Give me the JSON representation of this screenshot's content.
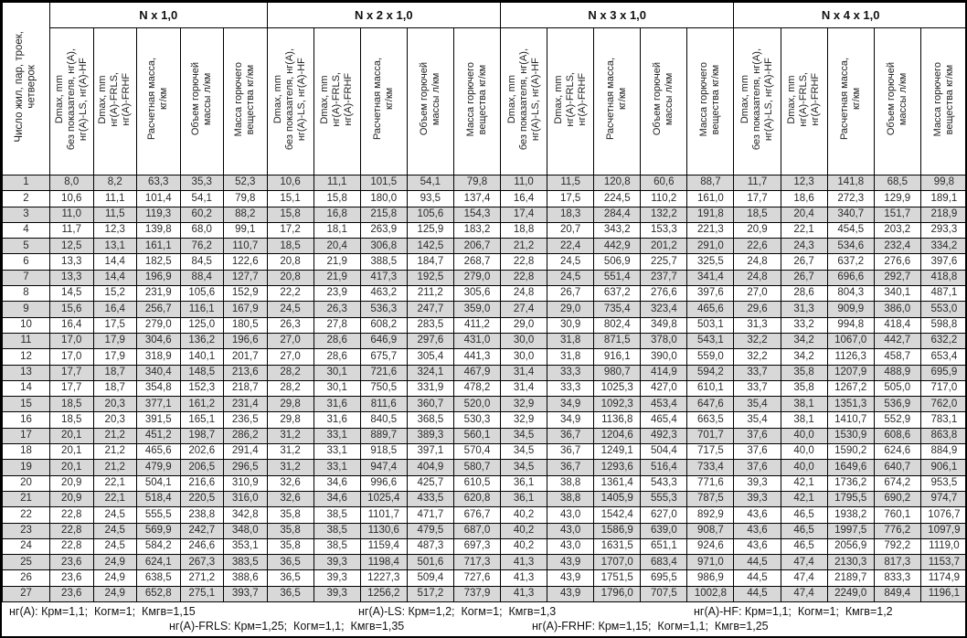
{
  "table": {
    "row_header_label": "Число жил, пар, троек,\nчетверок",
    "groups": [
      {
        "label": "N x 1,0"
      },
      {
        "label": "N x 2 x 1,0"
      },
      {
        "label": "N x 3 x 1,0"
      },
      {
        "label": "N x 4 x 1,0"
      }
    ],
    "column_headers": [
      "Dmax, mm\nбез показателя, нг(А),\nнг(А)-LS, нг(А)-HF",
      "Dmax, mm\nнг(А)-FRLS,\nнг(А)-FRHF",
      "Расчетная масса,\nкг/км",
      "Объем горючей\nмассы л/км",
      "Масса горючего\nвещества кг/км"
    ],
    "rows": [
      [
        "1",
        "8,0",
        "8,2",
        "63,3",
        "35,3",
        "52,3",
        "10,6",
        "11,1",
        "101,5",
        "54,1",
        "79,8",
        "11,0",
        "11,5",
        "120,8",
        "60,6",
        "88,7",
        "11,7",
        "12,3",
        "141,8",
        "68,5",
        "99,8"
      ],
      [
        "2",
        "10,6",
        "11,1",
        "101,4",
        "54,1",
        "79,8",
        "15,1",
        "15,8",
        "180,0",
        "93,5",
        "137,4",
        "16,4",
        "17,5",
        "224,5",
        "110,2",
        "161,0",
        "17,7",
        "18,6",
        "272,3",
        "129,9",
        "189,1"
      ],
      [
        "3",
        "11,0",
        "11,5",
        "119,3",
        "60,2",
        "88,2",
        "15,8",
        "16,8",
        "215,8",
        "105,6",
        "154,3",
        "17,4",
        "18,3",
        "284,4",
        "132,2",
        "191,8",
        "18,5",
        "20,4",
        "340,7",
        "151,7",
        "218,9"
      ],
      [
        "4",
        "11,7",
        "12,3",
        "139,8",
        "68,0",
        "99,1",
        "17,2",
        "18,1",
        "263,9",
        "125,9",
        "183,2",
        "18,8",
        "20,7",
        "343,2",
        "153,3",
        "221,3",
        "20,9",
        "22,1",
        "454,5",
        "203,2",
        "293,3"
      ],
      [
        "5",
        "12,5",
        "13,1",
        "161,1",
        "76,2",
        "110,7",
        "18,5",
        "20,4",
        "306,8",
        "142,5",
        "206,7",
        "21,2",
        "22,4",
        "442,9",
        "201,2",
        "291,0",
        "22,6",
        "24,3",
        "534,6",
        "232,4",
        "334,2"
      ],
      [
        "6",
        "13,3",
        "14,4",
        "182,5",
        "84,5",
        "122,6",
        "20,8",
        "21,9",
        "388,5",
        "184,7",
        "268,7",
        "22,8",
        "24,5",
        "506,9",
        "225,7",
        "325,5",
        "24,8",
        "26,7",
        "637,2",
        "276,6",
        "397,6"
      ],
      [
        "7",
        "13,3",
        "14,4",
        "196,9",
        "88,4",
        "127,7",
        "20,8",
        "21,9",
        "417,3",
        "192,5",
        "279,0",
        "22,8",
        "24,5",
        "551,4",
        "237,7",
        "341,4",
        "24,8",
        "26,7",
        "696,6",
        "292,7",
        "418,8"
      ],
      [
        "8",
        "14,5",
        "15,2",
        "231,9",
        "105,6",
        "152,9",
        "22,2",
        "23,9",
        "463,2",
        "211,2",
        "305,6",
        "24,8",
        "26,7",
        "637,2",
        "276,6",
        "397,6",
        "27,0",
        "28,6",
        "804,3",
        "340,1",
        "487,1"
      ],
      [
        "9",
        "15,6",
        "16,4",
        "256,7",
        "116,1",
        "167,9",
        "24,5",
        "26,3",
        "536,3",
        "247,7",
        "359,0",
        "27,4",
        "29,0",
        "735,4",
        "323,4",
        "465,6",
        "29,6",
        "31,3",
        "909,9",
        "386,0",
        "553,0"
      ],
      [
        "10",
        "16,4",
        "17,5",
        "279,0",
        "125,0",
        "180,5",
        "26,3",
        "27,8",
        "608,2",
        "283,5",
        "411,2",
        "29,0",
        "30,9",
        "802,4",
        "349,8",
        "503,1",
        "31,3",
        "33,2",
        "994,8",
        "418,4",
        "598,8"
      ],
      [
        "11",
        "17,0",
        "17,9",
        "304,6",
        "136,2",
        "196,6",
        "27,0",
        "28,6",
        "646,9",
        "297,6",
        "431,0",
        "30,0",
        "31,8",
        "871,5",
        "378,0",
        "543,1",
        "32,2",
        "34,2",
        "1067,0",
        "442,7",
        "632,2"
      ],
      [
        "12",
        "17,0",
        "17,9",
        "318,9",
        "140,1",
        "201,7",
        "27,0",
        "28,6",
        "675,7",
        "305,4",
        "441,3",
        "30,0",
        "31,8",
        "916,1",
        "390,0",
        "559,0",
        "32,2",
        "34,2",
        "1126,3",
        "458,7",
        "653,4"
      ],
      [
        "13",
        "17,7",
        "18,7",
        "340,4",
        "148,5",
        "213,6",
        "28,2",
        "30,1",
        "721,6",
        "324,1",
        "467,9",
        "31,4",
        "33,3",
        "980,7",
        "414,9",
        "594,2",
        "33,7",
        "35,8",
        "1207,9",
        "488,9",
        "695,9"
      ],
      [
        "14",
        "17,7",
        "18,7",
        "354,8",
        "152,3",
        "218,7",
        "28,2",
        "30,1",
        "750,5",
        "331,9",
        "478,2",
        "31,4",
        "33,3",
        "1025,3",
        "427,0",
        "610,1",
        "33,7",
        "35,8",
        "1267,2",
        "505,0",
        "717,0"
      ],
      [
        "15",
        "18,5",
        "20,3",
        "377,1",
        "161,2",
        "231,4",
        "29,8",
        "31,6",
        "811,6",
        "360,7",
        "520,0",
        "32,9",
        "34,9",
        "1092,3",
        "453,4",
        "647,6",
        "35,4",
        "38,1",
        "1351,3",
        "536,9",
        "762,0"
      ],
      [
        "16",
        "18,5",
        "20,3",
        "391,5",
        "165,1",
        "236,5",
        "29,8",
        "31,6",
        "840,5",
        "368,5",
        "530,3",
        "32,9",
        "34,9",
        "1136,8",
        "465,4",
        "663,5",
        "35,4",
        "38,1",
        "1410,7",
        "552,9",
        "783,1"
      ],
      [
        "17",
        "20,1",
        "21,2",
        "451,2",
        "198,7",
        "286,2",
        "31,2",
        "33,1",
        "889,7",
        "389,3",
        "560,1",
        "34,5",
        "36,7",
        "1204,6",
        "492,3",
        "701,7",
        "37,6",
        "40,0",
        "1530,9",
        "608,6",
        "863,8"
      ],
      [
        "18",
        "20,1",
        "21,2",
        "465,6",
        "202,6",
        "291,4",
        "31,2",
        "33,1",
        "918,5",
        "397,1",
        "570,4",
        "34,5",
        "36,7",
        "1249,1",
        "504,4",
        "717,5",
        "37,6",
        "40,0",
        "1590,2",
        "624,6",
        "884,9"
      ],
      [
        "19",
        "20,1",
        "21,2",
        "479,9",
        "206,5",
        "296,5",
        "31,2",
        "33,1",
        "947,4",
        "404,9",
        "580,7",
        "34,5",
        "36,7",
        "1293,6",
        "516,4",
        "733,4",
        "37,6",
        "40,0",
        "1649,6",
        "640,7",
        "906,1"
      ],
      [
        "20",
        "20,9",
        "22,1",
        "504,1",
        "216,6",
        "310,9",
        "32,6",
        "34,6",
        "996,6",
        "425,7",
        "610,5",
        "36,1",
        "38,8",
        "1361,4",
        "543,3",
        "771,6",
        "39,3",
        "42,1",
        "1736,2",
        "674,2",
        "953,5"
      ],
      [
        "21",
        "20,9",
        "22,1",
        "518,4",
        "220,5",
        "316,0",
        "32,6",
        "34,6",
        "1025,4",
        "433,5",
        "620,8",
        "36,1",
        "38,8",
        "1405,9",
        "555,3",
        "787,5",
        "39,3",
        "42,1",
        "1795,5",
        "690,2",
        "974,7"
      ],
      [
        "22",
        "22,8",
        "24,5",
        "555,5",
        "238,8",
        "342,8",
        "35,8",
        "38,5",
        "1101,7",
        "471,7",
        "676,7",
        "40,2",
        "43,0",
        "1542,4",
        "627,0",
        "892,9",
        "43,6",
        "46,5",
        "1938,2",
        "760,1",
        "1076,7"
      ],
      [
        "23",
        "22,8",
        "24,5",
        "569,9",
        "242,7",
        "348,0",
        "35,8",
        "38,5",
        "1130,6",
        "479,5",
        "687,0",
        "40,2",
        "43,0",
        "1586,9",
        "639,0",
        "908,7",
        "43,6",
        "46,5",
        "1997,5",
        "776,2",
        "1097,9"
      ],
      [
        "24",
        "22,8",
        "24,5",
        "584,2",
        "246,6",
        "353,1",
        "35,8",
        "38,5",
        "1159,4",
        "487,3",
        "697,3",
        "40,2",
        "43,0",
        "1631,5",
        "651,1",
        "924,6",
        "43,6",
        "46,5",
        "2056,9",
        "792,2",
        "1119,0"
      ],
      [
        "25",
        "23,6",
        "24,9",
        "624,1",
        "267,3",
        "383,5",
        "36,5",
        "39,3",
        "1198,4",
        "501,6",
        "717,3",
        "41,3",
        "43,9",
        "1707,0",
        "683,4",
        "971,0",
        "44,5",
        "47,4",
        "2130,3",
        "817,3",
        "1153,7"
      ],
      [
        "26",
        "23,6",
        "24,9",
        "638,5",
        "271,2",
        "388,6",
        "36,5",
        "39,3",
        "1227,3",
        "509,4",
        "727,6",
        "41,3",
        "43,9",
        "1751,5",
        "695,5",
        "986,9",
        "44,5",
        "47,4",
        "2189,7",
        "833,3",
        "1174,9"
      ],
      [
        "27",
        "23,6",
        "24,9",
        "652,8",
        "275,1",
        "393,7",
        "36,5",
        "39,3",
        "1256,2",
        "517,2",
        "737,9",
        "41,3",
        "43,9",
        "1796,0",
        "707,5",
        "1002,8",
        "44,5",
        "47,4",
        "2249,0",
        "849,4",
        "1196,1"
      ]
    ]
  },
  "footnotes": {
    "line1": [
      "нг(А): Крм=1,1;  Когм=1;  Кмгв=1,15",
      "нг(А)-LS: Крм=1,2;  Когм=1;  Кмгв=1,3",
      "нг(А)-HF: Крм=1,1;  Когм=1;  Кмгв=1,2"
    ],
    "line2": [
      "нг(А)-FRLS: Крм=1,25;  Когм=1,1;  Кмгв=1,35",
      "нг(А)-FRHF: Крм=1,15;  Когм=1,1;  Кмгв=1,25"
    ]
  },
  "colors": {
    "row_alt": "#d8d8d8",
    "border": "#000000",
    "background": "#ffffff"
  }
}
